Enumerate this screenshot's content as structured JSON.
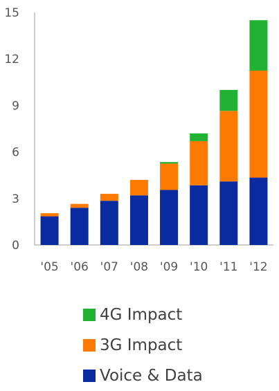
{
  "chart_data": {
    "type": "bar",
    "stacked": true,
    "categories": [
      "'05",
      "'06",
      "'07",
      "'08",
      "'09",
      "'10",
      "'11",
      "'12"
    ],
    "series": [
      {
        "name": "Voice & Data",
        "color": "#0a2aa0",
        "values": [
          1.85,
          2.4,
          2.85,
          3.2,
          3.55,
          3.85,
          4.1,
          4.35
        ]
      },
      {
        "name": "3G Impact",
        "color": "#ff7a00",
        "values": [
          0.2,
          0.25,
          0.45,
          1.0,
          1.7,
          2.85,
          4.55,
          6.9
        ]
      },
      {
        "name": "4G Impact",
        "color": "#22b233",
        "values": [
          0,
          0,
          0,
          0,
          0.1,
          0.5,
          1.35,
          3.25
        ]
      }
    ],
    "y_ticks": [
      "0",
      "3",
      "6",
      "9",
      "12",
      "15"
    ],
    "ylim": [
      0,
      15
    ],
    "legend_position": "bottom",
    "grid": false
  }
}
